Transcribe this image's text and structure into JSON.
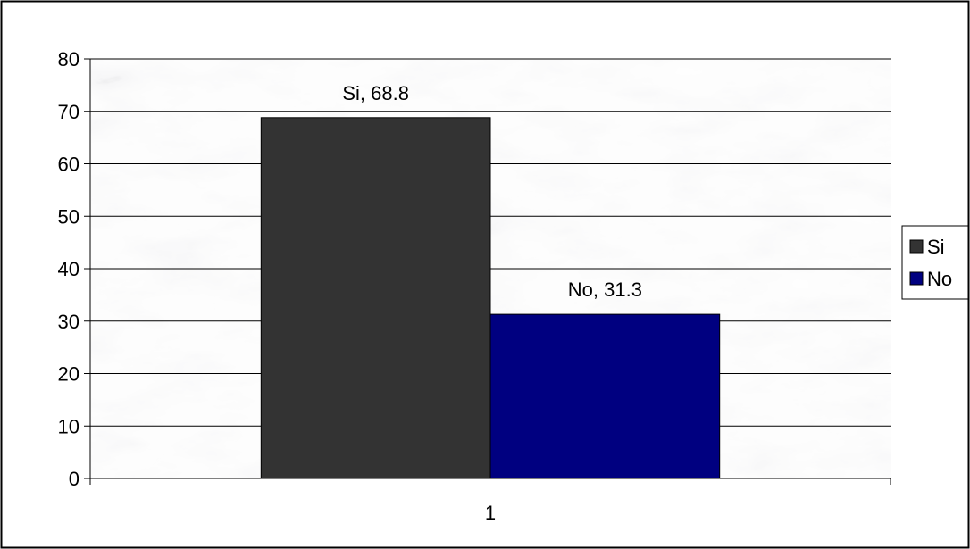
{
  "chart_data": {
    "type": "bar",
    "categories": [
      "1"
    ],
    "series": [
      {
        "name": "Si",
        "values": [
          68.8
        ],
        "color": "#333333",
        "label": "Si, 68.8"
      },
      {
        "name": "No",
        "values": [
          31.3
        ],
        "color": "#000080",
        "label": "No, 31.3"
      }
    ],
    "ylim": [
      0,
      80
    ],
    "yticks": [
      "0",
      "10",
      "20",
      "30",
      "40",
      "50",
      "60",
      "70",
      "80"
    ],
    "grid": true,
    "legend_position": "right",
    "background": "marble",
    "title": "",
    "xlabel": "",
    "ylabel": ""
  }
}
